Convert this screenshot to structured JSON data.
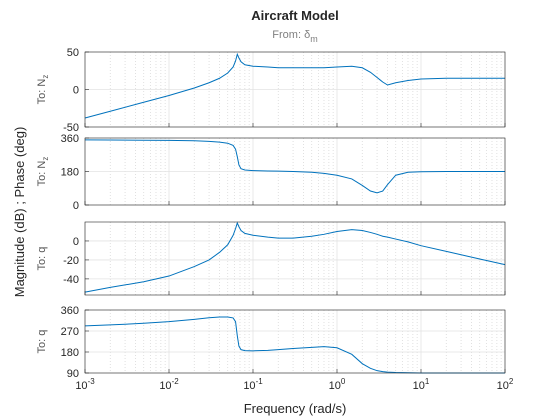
{
  "figure": {
    "title": "Aircraft Model",
    "subtitle": [
      "From: δ",
      "m"
    ],
    "ylabel": "Magnitude (dB) ; Phase (deg)",
    "xlabel": "Frequency  (rad/s)",
    "xscale": "log",
    "grid": true,
    "xlim": [
      0.001,
      100
    ],
    "xticks": [
      {
        "value": 0.001,
        "label": "10",
        "exponent": "-3"
      },
      {
        "value": 0.01,
        "label": "10",
        "exponent": "-2"
      },
      {
        "value": 0.1,
        "label": "10",
        "exponent": "-1"
      },
      {
        "value": 1,
        "label": "10",
        "exponent": "0"
      },
      {
        "value": 10,
        "label": "10",
        "exponent": "1"
      },
      {
        "value": 100,
        "label": "10",
        "exponent": "2"
      }
    ],
    "x": [
      0.001,
      0.002,
      0.005,
      0.01,
      0.02,
      0.03,
      0.04,
      0.05,
      0.058,
      0.062,
      0.065,
      0.068,
      0.072,
      0.08,
      0.1,
      0.15,
      0.2,
      0.3,
      0.5,
      0.7,
      1,
      1.5,
      2,
      2.5,
      3,
      3.5,
      4,
      5,
      7,
      10,
      20,
      50,
      100
    ]
  },
  "chart_data": [
    {
      "type": "line",
      "ylabel": [
        "To: N",
        "z"
      ],
      "color": "#0072bd",
      "ylim": [
        -50,
        50
      ],
      "yticks": [
        -50,
        0,
        50
      ],
      "values": [
        -38,
        -29,
        -17,
        -8,
        2,
        9,
        15,
        22,
        30,
        38,
        47,
        42,
        37,
        33,
        31,
        30,
        29,
        29,
        29,
        29,
        30,
        31,
        29,
        23,
        16,
        10,
        6,
        9,
        12,
        14,
        15,
        15,
        15
      ]
    },
    {
      "type": "line",
      "ylabel": [
        "To: N",
        "z"
      ],
      "color": "#0072bd",
      "ylim": [
        0,
        360
      ],
      "yticks": [
        0,
        180,
        360
      ],
      "values": [
        350,
        349,
        348,
        347,
        345,
        342,
        338,
        332,
        320,
        300,
        260,
        215,
        195,
        188,
        185,
        183,
        182,
        180,
        176,
        170,
        160,
        140,
        105,
        75,
        65,
        75,
        110,
        160,
        176,
        179,
        180,
        180,
        180
      ]
    },
    {
      "type": "line",
      "ylabel": [
        "To: q"
      ],
      "color": "#0072bd",
      "ylim": [
        -57,
        20
      ],
      "yticks": [
        -40,
        -20,
        0
      ],
      "values": [
        -54,
        -49,
        -43,
        -37,
        -27,
        -20,
        -12,
        -4,
        6,
        13,
        19,
        15,
        11,
        8,
        6,
        4,
        3,
        3,
        5,
        7,
        10,
        12,
        11,
        9,
        7,
        5,
        4,
        2,
        -1,
        -5,
        -11,
        -19,
        -25
      ]
    },
    {
      "type": "line",
      "ylabel": [
        "To: q"
      ],
      "color": "#0072bd",
      "ylim": [
        90,
        360
      ],
      "yticks": [
        90,
        180,
        270,
        360
      ],
      "values": [
        292,
        296,
        303,
        310,
        320,
        327,
        330,
        330,
        326,
        310,
        250,
        205,
        190,
        186,
        185,
        187,
        190,
        195,
        200,
        203,
        198,
        170,
        130,
        110,
        100,
        96,
        94,
        92,
        91,
        90,
        90,
        90,
        90
      ]
    }
  ]
}
